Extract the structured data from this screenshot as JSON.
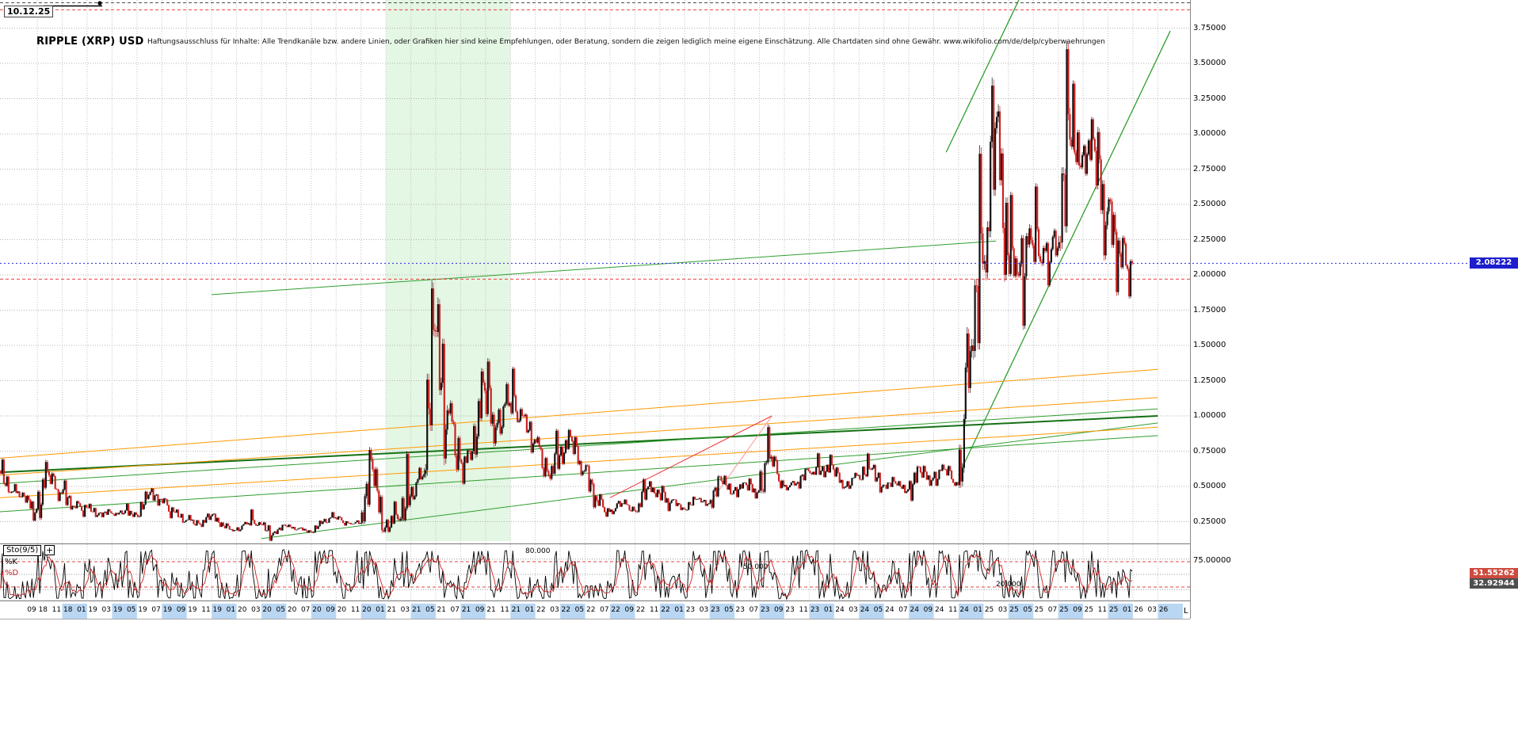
{
  "meta": {
    "title": "RIPPLE (XRP) USD",
    "disclaimer": "Haftungsausschluss für Inhalte: Alle Trendkanäle bzw. andere Linien, oder Grafiken hier sind keine Empfehlungen, oder Beratung, sondern die zeigen lediglich meine eigene Einschätzung. Alle Chartdaten sind ohne Gewähr.  www.wikifolio.com/de/delp/cyberwaehrungen",
    "date_label": "10.12.25",
    "corner_mark": "L"
  },
  "price_axis": {
    "ticks": [
      "3.75000",
      "3.50000",
      "3.25000",
      "3.00000",
      "2.75000",
      "2.50000",
      "2.25000",
      "2.00000",
      "1.75000",
      "1.50000",
      "1.25000",
      "1.00000",
      "0.75000",
      "0.50000",
      "0.25000"
    ],
    "last_price_label": "2.08222",
    "badge_color": "#1e1ecd"
  },
  "x_axis": {
    "labels": [
      "09 18",
      "11 18",
      "01 19",
      "03 19",
      "05 19",
      "07 19",
      "09 19",
      "11 19",
      "01 20",
      "03 20",
      "05 20",
      "07 20",
      "09 20",
      "11 20",
      "01 21",
      "03 21",
      "05 21",
      "07 21",
      "09 21",
      "11 21",
      "01 22",
      "03 22",
      "05 22",
      "07 22",
      "09 22",
      "11 22",
      "01 23",
      "03 23",
      "05 23",
      "07 23",
      "09 23",
      "11 23",
      "01 24",
      "03 24",
      "05 24",
      "07 24",
      "09 24",
      "11 24",
      "01 25",
      "03 25",
      "05 25",
      "07 25",
      "09 25",
      "11 25",
      "01 26",
      "03 26"
    ],
    "alt_band_color": "#b9d6f2"
  },
  "indicator": {
    "name": "Sto(9/5)",
    "expand_label": "+",
    "k_label": "%K",
    "d_label": "%D",
    "k_value": 51.55262,
    "d_value": 32.92944,
    "k_value_label": "51.55262",
    "d_value_label": "32.92944",
    "level_80_label": "80.000",
    "level_75_label": "75.00000",
    "level_50_label": "50.000",
    "level_20_label": "20.000",
    "k_color": "#000000",
    "d_color": "#cc2222"
  },
  "chart_data": {
    "type": "candlestick",
    "title": "RIPPLE (XRP) USD",
    "x_start_month": "2018-06",
    "x_end_month": "2026-03",
    "ylim": [
      0.05,
      3.95
    ],
    "y_ticks": [
      0.25,
      0.5,
      0.75,
      1.0,
      1.25,
      1.5,
      1.75,
      2.0,
      2.25,
      2.5,
      2.75,
      3.0,
      3.25,
      3.5,
      3.75
    ],
    "last_price": 2.08222,
    "candle_up_color": "#111111",
    "candle_down_color": "#cc2222",
    "monthly_ohlc": [
      [
        "2018-06",
        0.61,
        0.7,
        0.45,
        0.46
      ],
      [
        "2018-07",
        0.46,
        0.52,
        0.42,
        0.43
      ],
      [
        "2018-08",
        0.43,
        0.44,
        0.25,
        0.34
      ],
      [
        "2018-09",
        0.34,
        0.69,
        0.26,
        0.58
      ],
      [
        "2018-10",
        0.58,
        0.6,
        0.39,
        0.45
      ],
      [
        "2018-11",
        0.45,
        0.55,
        0.33,
        0.36
      ],
      [
        "2018-12",
        0.36,
        0.4,
        0.28,
        0.35
      ],
      [
        "2019-01",
        0.35,
        0.38,
        0.28,
        0.31
      ],
      [
        "2019-02",
        0.31,
        0.34,
        0.28,
        0.31
      ],
      [
        "2019-03",
        0.31,
        0.33,
        0.29,
        0.31
      ],
      [
        "2019-04",
        0.31,
        0.38,
        0.28,
        0.3
      ],
      [
        "2019-05",
        0.3,
        0.47,
        0.28,
        0.44
      ],
      [
        "2019-06",
        0.44,
        0.49,
        0.36,
        0.41
      ],
      [
        "2019-07",
        0.41,
        0.42,
        0.27,
        0.32
      ],
      [
        "2019-08",
        0.32,
        0.34,
        0.24,
        0.26
      ],
      [
        "2019-09",
        0.26,
        0.3,
        0.22,
        0.24
      ],
      [
        "2019-10",
        0.24,
        0.31,
        0.21,
        0.29
      ],
      [
        "2019-11",
        0.29,
        0.31,
        0.21,
        0.22
      ],
      [
        "2019-12",
        0.22,
        0.24,
        0.18,
        0.19
      ],
      [
        "2020-01",
        0.19,
        0.25,
        0.18,
        0.24
      ],
      [
        "2020-02",
        0.24,
        0.34,
        0.22,
        0.23
      ],
      [
        "2020-03",
        0.23,
        0.25,
        0.11,
        0.17
      ],
      [
        "2020-04",
        0.17,
        0.23,
        0.16,
        0.22
      ],
      [
        "2020-05",
        0.22,
        0.23,
        0.19,
        0.2
      ],
      [
        "2020-06",
        0.2,
        0.21,
        0.17,
        0.18
      ],
      [
        "2020-07",
        0.18,
        0.26,
        0.17,
        0.25
      ],
      [
        "2020-08",
        0.25,
        0.32,
        0.24,
        0.28
      ],
      [
        "2020-09",
        0.28,
        0.29,
        0.22,
        0.24
      ],
      [
        "2020-10",
        0.24,
        0.26,
        0.23,
        0.24
      ],
      [
        "2020-11",
        0.24,
        0.78,
        0.23,
        0.62
      ],
      [
        "2020-12",
        0.62,
        0.64,
        0.17,
        0.21
      ],
      [
        "2021-01",
        0.21,
        0.4,
        0.17,
        0.27
      ],
      [
        "2021-02",
        0.27,
        0.75,
        0.25,
        0.43
      ],
      [
        "2021-03",
        0.43,
        0.64,
        0.4,
        0.57
      ],
      [
        "2021-04",
        0.57,
        1.96,
        0.56,
        1.6
      ],
      [
        "2021-05",
        1.6,
        1.84,
        0.65,
        1.04
      ],
      [
        "2021-06",
        1.04,
        1.11,
        0.6,
        0.69
      ],
      [
        "2021-07",
        0.69,
        0.76,
        0.51,
        0.75
      ],
      [
        "2021-08",
        0.75,
        1.34,
        0.7,
        1.18
      ],
      [
        "2021-09",
        1.18,
        1.41,
        0.78,
        0.95
      ],
      [
        "2021-10",
        0.95,
        1.24,
        0.86,
        1.09
      ],
      [
        "2021-11",
        1.09,
        1.35,
        0.95,
        1.0
      ],
      [
        "2021-12",
        1.0,
        1.02,
        0.73,
        0.83
      ],
      [
        "2022-01",
        0.83,
        0.86,
        0.56,
        0.61
      ],
      [
        "2022-02",
        0.61,
        0.91,
        0.54,
        0.72
      ],
      [
        "2022-03",
        0.72,
        0.91,
        0.65,
        0.82
      ],
      [
        "2022-04",
        0.82,
        0.86,
        0.57,
        0.61
      ],
      [
        "2022-05",
        0.61,
        0.66,
        0.34,
        0.4
      ],
      [
        "2022-06",
        0.4,
        0.45,
        0.28,
        0.32
      ],
      [
        "2022-07",
        0.32,
        0.4,
        0.3,
        0.38
      ],
      [
        "2022-08",
        0.38,
        0.41,
        0.32,
        0.33
      ],
      [
        "2022-09",
        0.33,
        0.56,
        0.31,
        0.48
      ],
      [
        "2022-10",
        0.48,
        0.54,
        0.42,
        0.45
      ],
      [
        "2022-11",
        0.45,
        0.51,
        0.32,
        0.4
      ],
      [
        "2022-12",
        0.4,
        0.41,
        0.33,
        0.34
      ],
      [
        "2023-01",
        0.34,
        0.43,
        0.33,
        0.41
      ],
      [
        "2023-02",
        0.41,
        0.42,
        0.36,
        0.38
      ],
      [
        "2023-03",
        0.38,
        0.58,
        0.34,
        0.54
      ],
      [
        "2023-04",
        0.54,
        0.58,
        0.44,
        0.47
      ],
      [
        "2023-05",
        0.47,
        0.53,
        0.42,
        0.51
      ],
      [
        "2023-06",
        0.51,
        0.56,
        0.41,
        0.47
      ],
      [
        "2023-07",
        0.47,
        0.94,
        0.45,
        0.71
      ],
      [
        "2023-08",
        0.71,
        0.72,
        0.48,
        0.5
      ],
      [
        "2023-09",
        0.5,
        0.54,
        0.47,
        0.52
      ],
      [
        "2023-10",
        0.52,
        0.63,
        0.48,
        0.61
      ],
      [
        "2023-11",
        0.61,
        0.74,
        0.58,
        0.61
      ],
      [
        "2023-12",
        0.61,
        0.73,
        0.56,
        0.62
      ],
      [
        "2024-01",
        0.62,
        0.64,
        0.48,
        0.5
      ],
      [
        "2024-02",
        0.5,
        0.6,
        0.48,
        0.58
      ],
      [
        "2024-03",
        0.58,
        0.74,
        0.54,
        0.62
      ],
      [
        "2024-04",
        0.62,
        0.66,
        0.45,
        0.51
      ],
      [
        "2024-05",
        0.51,
        0.57,
        0.48,
        0.52
      ],
      [
        "2024-06",
        0.52,
        0.54,
        0.45,
        0.48
      ],
      [
        "2024-07",
        0.48,
        0.65,
        0.39,
        0.6
      ],
      [
        "2024-08",
        0.6,
        0.65,
        0.5,
        0.56
      ],
      [
        "2024-09",
        0.56,
        0.66,
        0.5,
        0.62
      ],
      [
        "2024-10",
        0.62,
        0.65,
        0.5,
        0.51
      ],
      [
        "2024-11",
        0.51,
        1.63,
        0.49,
        1.46
      ],
      [
        "2024-12",
        1.46,
        2.92,
        1.4,
        2.08
      ],
      [
        "2025-01",
        2.08,
        3.4,
        1.96,
        3.04
      ],
      [
        "2025-02",
        3.04,
        3.21,
        1.95,
        2.14
      ],
      [
        "2025-03",
        2.14,
        2.59,
        1.98,
        2.08
      ],
      [
        "2025-04",
        2.08,
        2.36,
        1.61,
        2.21
      ],
      [
        "2025-05",
        2.21,
        2.65,
        2.06,
        2.17
      ],
      [
        "2025-06",
        2.17,
        2.33,
        1.91,
        2.19
      ],
      [
        "2025-07",
        2.19,
        3.66,
        2.17,
        2.96
      ],
      [
        "2025-08",
        2.96,
        3.38,
        2.75,
        2.85
      ],
      [
        "2025-09",
        2.85,
        3.12,
        2.7,
        2.88
      ],
      [
        "2025-10",
        2.88,
        3.05,
        2.1,
        2.45
      ],
      [
        "2025-11",
        2.45,
        2.55,
        1.85,
        2.15
      ],
      [
        "2025-12",
        2.15,
        2.28,
        1.83,
        2.08222
      ]
    ],
    "overlays": {
      "band": {
        "from": "2021-01",
        "to": "2021-11",
        "color": "#c9eec9"
      },
      "trend_lines": [
        {
          "from": [
            "2019-11",
            1.86
          ],
          "to": [
            "2025-02",
            2.24
          ],
          "color": "#2f9e2f",
          "width": 1
        },
        {
          "from": [
            "2024-11",
            0.58
          ],
          "to": [
            "2026-04",
            3.73
          ],
          "color": "#2f9e2f",
          "width": 1.3
        },
        {
          "from": [
            "2024-10",
            2.87
          ],
          "to": [
            "2025-04",
            3.98
          ],
          "color": "#2f9e2f",
          "width": 1.3
        },
        {
          "from": [
            "2018-06",
            0.6
          ],
          "to": [
            "2026-03",
            1.0
          ],
          "color": "#157015",
          "width": 2
        },
        {
          "from": [
            "2018-06",
            0.52
          ],
          "to": [
            "2026-03",
            1.05
          ],
          "color": "#2f9e2f",
          "width": 1
        },
        {
          "from": [
            "2018-06",
            0.32
          ],
          "to": [
            "2026-03",
            0.86
          ],
          "color": "#2f9e2f",
          "width": 1
        },
        {
          "from": [
            "2020-03",
            0.13
          ],
          "to": [
            "2026-03",
            0.95
          ],
          "color": "#2f9e2f",
          "width": 1
        },
        {
          "from": [
            "2018-06",
            0.7
          ],
          "to": [
            "2026-03",
            1.33
          ],
          "color": "#ff9900",
          "width": 1
        },
        {
          "from": [
            "2018-06",
            0.58
          ],
          "to": [
            "2026-03",
            1.13
          ],
          "color": "#ff9900",
          "width": 1
        },
        {
          "from": [
            "2018-06",
            0.42
          ],
          "to": [
            "2026-03",
            0.92
          ],
          "color": "#ff9900",
          "width": 1
        },
        {
          "from": [
            "2022-07",
            0.42
          ],
          "to": [
            "2023-08",
            1.0
          ],
          "color": "#ee3333",
          "width": 1
        },
        {
          "from": [
            "2023-03",
            0.38
          ],
          "to": [
            "2023-08",
            1.0
          ],
          "color": "#ff9090",
          "width": 1
        }
      ],
      "alert_lines": [
        {
          "price": 3.93,
          "color": "#333333"
        },
        {
          "price": 3.88,
          "color": "#ee2222"
        },
        {
          "price": 1.97,
          "color": "#ee2222"
        }
      ],
      "last_price_line_color": "#2a2ae0"
    },
    "indicator": {
      "type": "stochastic",
      "k_period": 9,
      "d_period": 5,
      "range": [
        0,
        100
      ],
      "dashed_levels": [
        75,
        25
      ],
      "dotted_levels": [
        80,
        50,
        20
      ],
      "k_last": 51.55262,
      "d_last": 32.92944
    }
  }
}
